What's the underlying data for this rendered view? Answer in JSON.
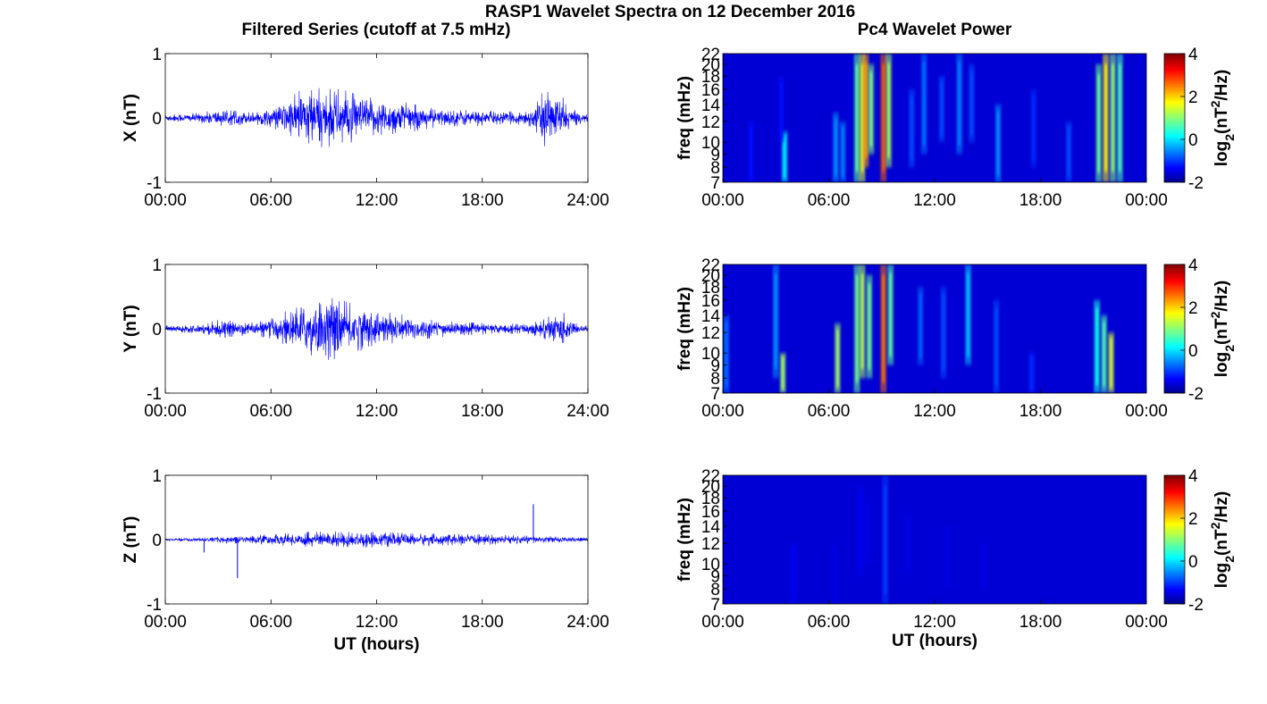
{
  "figure": {
    "suptitle": "RASP1 Wavelet Spectra on 12 December 2016",
    "left_title": "Filtered Series (cutoff at 7.5 mHz)",
    "right_title": "Pc4 Wavelet Power",
    "xlabel": "UT (hours)"
  },
  "chart_data": [
    {
      "type": "line",
      "component": "X",
      "ylabel": "X (nT)",
      "xlim": [
        0,
        24
      ],
      "ylim": [
        -1,
        1
      ],
      "xticks": [
        "00:00",
        "06:00",
        "12:00",
        "18:00",
        "24:00"
      ],
      "yticks": [
        "-1",
        "0",
        "1"
      ],
      "color": "#0000ff",
      "envelope": {
        "hours": [
          0,
          2,
          3,
          3.5,
          5,
          6,
          7,
          8,
          9,
          10,
          11,
          12,
          13,
          14,
          15,
          16,
          17,
          18,
          19,
          20,
          21,
          21.5,
          22,
          22.5,
          23,
          24
        ],
        "amplitude": [
          0.06,
          0.08,
          0.14,
          0.12,
          0.1,
          0.14,
          0.3,
          0.5,
          0.45,
          0.45,
          0.35,
          0.3,
          0.28,
          0.22,
          0.16,
          0.14,
          0.14,
          0.12,
          0.1,
          0.1,
          0.18,
          0.45,
          0.35,
          0.35,
          0.15,
          0.05
        ]
      }
    },
    {
      "type": "line",
      "component": "Y",
      "ylabel": "Y (nT)",
      "xlim": [
        0,
        24
      ],
      "ylim": [
        -1,
        1
      ],
      "xticks": [
        "00:00",
        "06:00",
        "12:00",
        "18:00",
        "24:00"
      ],
      "yticks": [
        "-1",
        "0",
        "1"
      ],
      "color": "#0000ff",
      "envelope": {
        "hours": [
          0,
          2,
          3,
          4,
          5,
          6,
          7,
          8,
          9,
          10,
          11,
          12,
          13,
          14,
          15,
          16,
          17,
          18,
          19,
          20,
          21,
          21.5,
          22,
          22.5,
          23,
          24
        ],
        "amplitude": [
          0.05,
          0.07,
          0.14,
          0.12,
          0.1,
          0.16,
          0.3,
          0.38,
          0.5,
          0.45,
          0.35,
          0.28,
          0.24,
          0.2,
          0.15,
          0.12,
          0.1,
          0.09,
          0.08,
          0.08,
          0.12,
          0.2,
          0.18,
          0.3,
          0.1,
          0.05
        ]
      }
    },
    {
      "type": "line",
      "component": "Z",
      "ylabel": "Z (nT)",
      "xlim": [
        0,
        24
      ],
      "ylim": [
        -1,
        1
      ],
      "xticks": [
        "00:00",
        "06:00",
        "12:00",
        "18:00",
        "24:00"
      ],
      "yticks": [
        "-1",
        "0",
        "1"
      ],
      "xlabel": "UT (hours)",
      "color": "#0000ff",
      "envelope": {
        "hours": [
          0,
          2,
          4,
          6,
          8,
          10,
          12,
          14,
          16,
          18,
          20,
          22,
          24
        ],
        "amplitude": [
          0.02,
          0.03,
          0.06,
          0.08,
          0.12,
          0.13,
          0.12,
          0.1,
          0.09,
          0.08,
          0.07,
          0.05,
          0.03
        ]
      },
      "spikes": [
        {
          "hour": 2.2,
          "value": -0.2
        },
        {
          "hour": 4.1,
          "value": -0.6
        },
        {
          "hour": 20.9,
          "value": 0.55
        }
      ]
    },
    {
      "type": "heatmap",
      "component": "X",
      "ylabel": "freq (mHz)",
      "xlim": [
        0,
        24
      ],
      "ylim": [
        7,
        22
      ],
      "xticks": [
        "00:00",
        "06:00",
        "12:00",
        "18:00",
        "00:00"
      ],
      "yticks": [
        "7",
        "8",
        "9",
        "10",
        "12",
        "14",
        "16",
        "18",
        "20",
        "22"
      ],
      "colorbar": {
        "label": "log2(nT2/Hz)",
        "range": [
          -2,
          4
        ],
        "ticks": [
          "-2",
          "0",
          "2",
          "4"
        ]
      },
      "bursts": [
        {
          "hour": 1.6,
          "f_low": 7,
          "f_high": 12,
          "level": -1.2
        },
        {
          "hour": 3.5,
          "f_low": 7,
          "f_high": 11,
          "level": 0.2
        },
        {
          "hour": 3.3,
          "f_low": 10,
          "f_high": 18,
          "level": -1.2
        },
        {
          "hour": 6.4,
          "f_low": 7,
          "f_high": 13,
          "level": -0.4
        },
        {
          "hour": 6.8,
          "f_low": 7,
          "f_high": 12,
          "level": -0.5
        },
        {
          "hour": 7.6,
          "f_low": 7,
          "f_high": 22,
          "level": 0.8
        },
        {
          "hour": 7.9,
          "f_low": 7,
          "f_high": 22,
          "level": 1.6
        },
        {
          "hour": 8.1,
          "f_low": 8,
          "f_high": 22,
          "level": 2.3
        },
        {
          "hour": 8.4,
          "f_low": 9,
          "f_high": 20,
          "level": 1.0
        },
        {
          "hour": 9.1,
          "f_low": 7,
          "f_high": 22,
          "level": 2.7
        },
        {
          "hour": 9.4,
          "f_low": 8,
          "f_high": 22,
          "level": 1.2
        },
        {
          "hour": 10.7,
          "f_low": 8,
          "f_high": 16,
          "level": -0.8
        },
        {
          "hour": 11.4,
          "f_low": 9,
          "f_high": 22,
          "level": -0.6
        },
        {
          "hour": 12.4,
          "f_low": 10,
          "f_high": 18,
          "level": -0.8
        },
        {
          "hour": 13.4,
          "f_low": 9,
          "f_high": 22,
          "level": -0.5
        },
        {
          "hour": 14.1,
          "f_low": 10,
          "f_high": 20,
          "level": -0.8
        },
        {
          "hour": 15.6,
          "f_low": 7,
          "f_high": 14,
          "level": -0.4
        },
        {
          "hour": 17.6,
          "f_low": 8,
          "f_high": 16,
          "level": -1.0
        },
        {
          "hour": 19.6,
          "f_low": 7,
          "f_high": 12,
          "level": -0.8
        },
        {
          "hour": 21.3,
          "f_low": 7,
          "f_high": 20,
          "level": 0.9
        },
        {
          "hour": 21.7,
          "f_low": 7,
          "f_high": 22,
          "level": 1.8
        },
        {
          "hour": 22.1,
          "f_low": 7,
          "f_high": 22,
          "level": 1.1
        },
        {
          "hour": 22.5,
          "f_low": 7,
          "f_high": 22,
          "level": 0.7
        }
      ]
    },
    {
      "type": "heatmap",
      "component": "Y",
      "ylabel": "freq (mHz)",
      "xlim": [
        0,
        24
      ],
      "ylim": [
        7,
        22
      ],
      "xticks": [
        "00:00",
        "06:00",
        "12:00",
        "18:00",
        "00:00"
      ],
      "yticks": [
        "7",
        "8",
        "9",
        "10",
        "12",
        "14",
        "16",
        "18",
        "20",
        "22"
      ],
      "colorbar": {
        "label": "log2(nT2/Hz)",
        "range": [
          -2,
          4
        ],
        "ticks": [
          "-2",
          "0",
          "2",
          "4"
        ]
      },
      "bursts": [
        {
          "hour": 0.2,
          "f_low": 7,
          "f_high": 14,
          "level": -0.6
        },
        {
          "hour": 3.0,
          "f_low": 8,
          "f_high": 22,
          "level": -0.4
        },
        {
          "hour": 3.4,
          "f_low": 7,
          "f_high": 10,
          "level": 1.2
        },
        {
          "hour": 6.5,
          "f_low": 7,
          "f_high": 13,
          "level": 1.2
        },
        {
          "hour": 7.6,
          "f_low": 7,
          "f_high": 22,
          "level": 0.9
        },
        {
          "hour": 7.9,
          "f_low": 8,
          "f_high": 22,
          "level": 1.3
        },
        {
          "hour": 8.3,
          "f_low": 8,
          "f_high": 20,
          "level": 0.9
        },
        {
          "hour": 9.1,
          "f_low": 7,
          "f_high": 22,
          "level": 2.6
        },
        {
          "hour": 9.5,
          "f_low": 9,
          "f_high": 22,
          "level": 0.8
        },
        {
          "hour": 11.2,
          "f_low": 9,
          "f_high": 18,
          "level": -0.7
        },
        {
          "hour": 12.5,
          "f_low": 8,
          "f_high": 18,
          "level": -0.8
        },
        {
          "hour": 13.9,
          "f_low": 9,
          "f_high": 22,
          "level": -0.1
        },
        {
          "hour": 15.5,
          "f_low": 7,
          "f_high": 16,
          "level": -0.8
        },
        {
          "hour": 17.5,
          "f_low": 7,
          "f_high": 10,
          "level": -1.0
        },
        {
          "hour": 21.2,
          "f_low": 7,
          "f_high": 16,
          "level": 0.4
        },
        {
          "hour": 21.6,
          "f_low": 7,
          "f_high": 14,
          "level": 0.7
        },
        {
          "hour": 22.0,
          "f_low": 7,
          "f_high": 12,
          "level": 1.5
        }
      ]
    },
    {
      "type": "heatmap",
      "component": "Z",
      "ylabel": "freq (mHz)",
      "xlabel": "UT (hours)",
      "xlim": [
        0,
        24
      ],
      "ylim": [
        7,
        22
      ],
      "xticks": [
        "00:00",
        "06:00",
        "12:00",
        "18:00",
        "00:00"
      ],
      "yticks": [
        "7",
        "8",
        "9",
        "10",
        "12",
        "14",
        "16",
        "18",
        "20",
        "22"
      ],
      "colorbar": {
        "label": "log2(nT2/Hz)",
        "range": [
          -2,
          4
        ],
        "ticks": [
          "-2",
          "0",
          "2",
          "4"
        ]
      },
      "bursts": [
        {
          "hour": 4.0,
          "f_low": 7,
          "f_high": 12,
          "level": -1.3
        },
        {
          "hour": 6.3,
          "f_low": 7,
          "f_high": 12,
          "level": -1.4
        },
        {
          "hour": 7.8,
          "f_low": 9,
          "f_high": 20,
          "level": -1.3
        },
        {
          "hour": 8.2,
          "f_low": 10,
          "f_high": 18,
          "level": -1.4
        },
        {
          "hour": 9.2,
          "f_low": 7,
          "f_high": 22,
          "level": -0.9
        },
        {
          "hour": 10.5,
          "f_low": 9,
          "f_high": 16,
          "level": -1.4
        },
        {
          "hour": 12.7,
          "f_low": 8,
          "f_high": 14,
          "level": -1.4
        },
        {
          "hour": 14.8,
          "f_low": 8,
          "f_high": 12,
          "level": -1.4
        }
      ]
    }
  ]
}
